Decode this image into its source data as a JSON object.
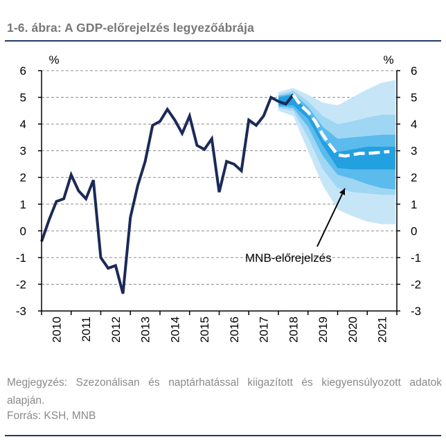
{
  "figure": {
    "title": "1-6. ábra: A GDP-előrejelzés legyezőábrája",
    "note": "Megjegyzés: Szezonálisan és naptárhatással kiigazított és kiegyensúlyozott adatok alapján.",
    "source": "Forrás: KSH, MNB"
  },
  "chart_data": {
    "type": "line",
    "title": "1-6. ábra: A GDP-előrejelzés legyezőábrája",
    "y_unit_left": "%",
    "y_unit_right": "%",
    "ylim": [
      -3,
      6
    ],
    "yticks": [
      -3,
      -2,
      -1,
      0,
      1,
      2,
      3,
      4,
      5,
      6
    ],
    "xlim": [
      2010,
      2022
    ],
    "xticks": [
      "2010",
      "2011",
      "2012",
      "2013",
      "2014",
      "2015",
      "2016",
      "2017",
      "2018",
      "2019",
      "2020",
      "2021"
    ],
    "grid": "horizontal",
    "annotation": "MNB-előrejelzés",
    "colors": {
      "actual": "#1b2a57",
      "forecast": "#ffffff",
      "fan_outer": "#c6e6f8",
      "fan_mid_outer": "#9fd6f4",
      "fan_mid_inner": "#5bbbec",
      "fan_inner": "#23a0e0"
    },
    "series": [
      {
        "kind": "actual",
        "x": [
          2010.0,
          2010.25,
          2010.5,
          2010.75,
          2011.0,
          2011.25,
          2011.5,
          2011.75,
          2012.0,
          2012.25,
          2012.5,
          2012.75,
          2013.0,
          2013.25,
          2013.5,
          2013.75,
          2014.0,
          2014.25,
          2014.5,
          2014.75,
          2015.0,
          2015.25,
          2015.5,
          2015.75,
          2016.0,
          2016.25,
          2016.5,
          2016.75,
          2017.0,
          2017.25,
          2017.5,
          2017.75,
          2018.0,
          2018.25,
          2018.5
        ],
        "values": [
          -0.4,
          0.4,
          1.1,
          1.2,
          2.1,
          1.5,
          1.2,
          1.9,
          -1.0,
          -1.4,
          -1.3,
          -2.35,
          0.5,
          1.7,
          2.6,
          3.95,
          4.1,
          4.55,
          4.15,
          3.65,
          4.3,
          3.2,
          3.05,
          3.45,
          1.45,
          2.6,
          2.5,
          2.25,
          4.15,
          3.95,
          4.3,
          5.0,
          4.85,
          4.75,
          5.1
        ]
      },
      {
        "kind": "forecast",
        "x": [
          2018.5,
          2018.75,
          2019.0,
          2019.25,
          2019.5,
          2019.75,
          2020.0,
          2020.25,
          2020.5,
          2020.75,
          2021.0,
          2021.25,
          2021.5,
          2021.75
        ],
        "values": [
          5.1,
          4.7,
          4.45,
          4.1,
          3.6,
          3.2,
          2.85,
          2.8,
          2.85,
          2.9,
          2.9,
          2.92,
          2.95,
          2.97
        ]
      }
    ],
    "fan_bands": {
      "x": [
        2018.0,
        2018.5,
        2019.0,
        2019.5,
        2020.0,
        2020.5,
        2021.0,
        2021.5,
        2021.95
      ],
      "outer": {
        "upper": [
          5.2,
          5.35,
          5.1,
          4.8,
          4.7,
          5.0,
          5.3,
          5.55,
          5.65
        ],
        "lower": [
          4.5,
          4.3,
          3.0,
          1.7,
          0.8,
          0.55,
          0.35,
          0.25,
          0.25
        ]
      },
      "mid_outer": {
        "upper": [
          5.1,
          5.25,
          4.85,
          4.3,
          4.0,
          4.1,
          4.25,
          4.35,
          4.35
        ],
        "lower": [
          4.6,
          4.5,
          3.5,
          2.3,
          1.6,
          1.45,
          1.4,
          1.35,
          1.35
        ]
      },
      "mid_inner": {
        "upper": [
          5.05,
          5.15,
          4.65,
          3.9,
          3.45,
          3.5,
          3.55,
          3.6,
          3.6
        ],
        "lower": [
          4.65,
          4.6,
          3.9,
          2.8,
          2.1,
          1.95,
          1.75,
          1.6,
          1.55
        ]
      },
      "inner": {
        "upper": [
          5.0,
          5.1,
          4.45,
          3.4,
          2.95,
          3.05,
          3.15,
          3.15,
          3.15
        ],
        "lower": [
          4.7,
          4.7,
          4.2,
          3.2,
          2.35,
          2.3,
          2.3,
          2.3,
          2.3
        ]
      }
    }
  }
}
